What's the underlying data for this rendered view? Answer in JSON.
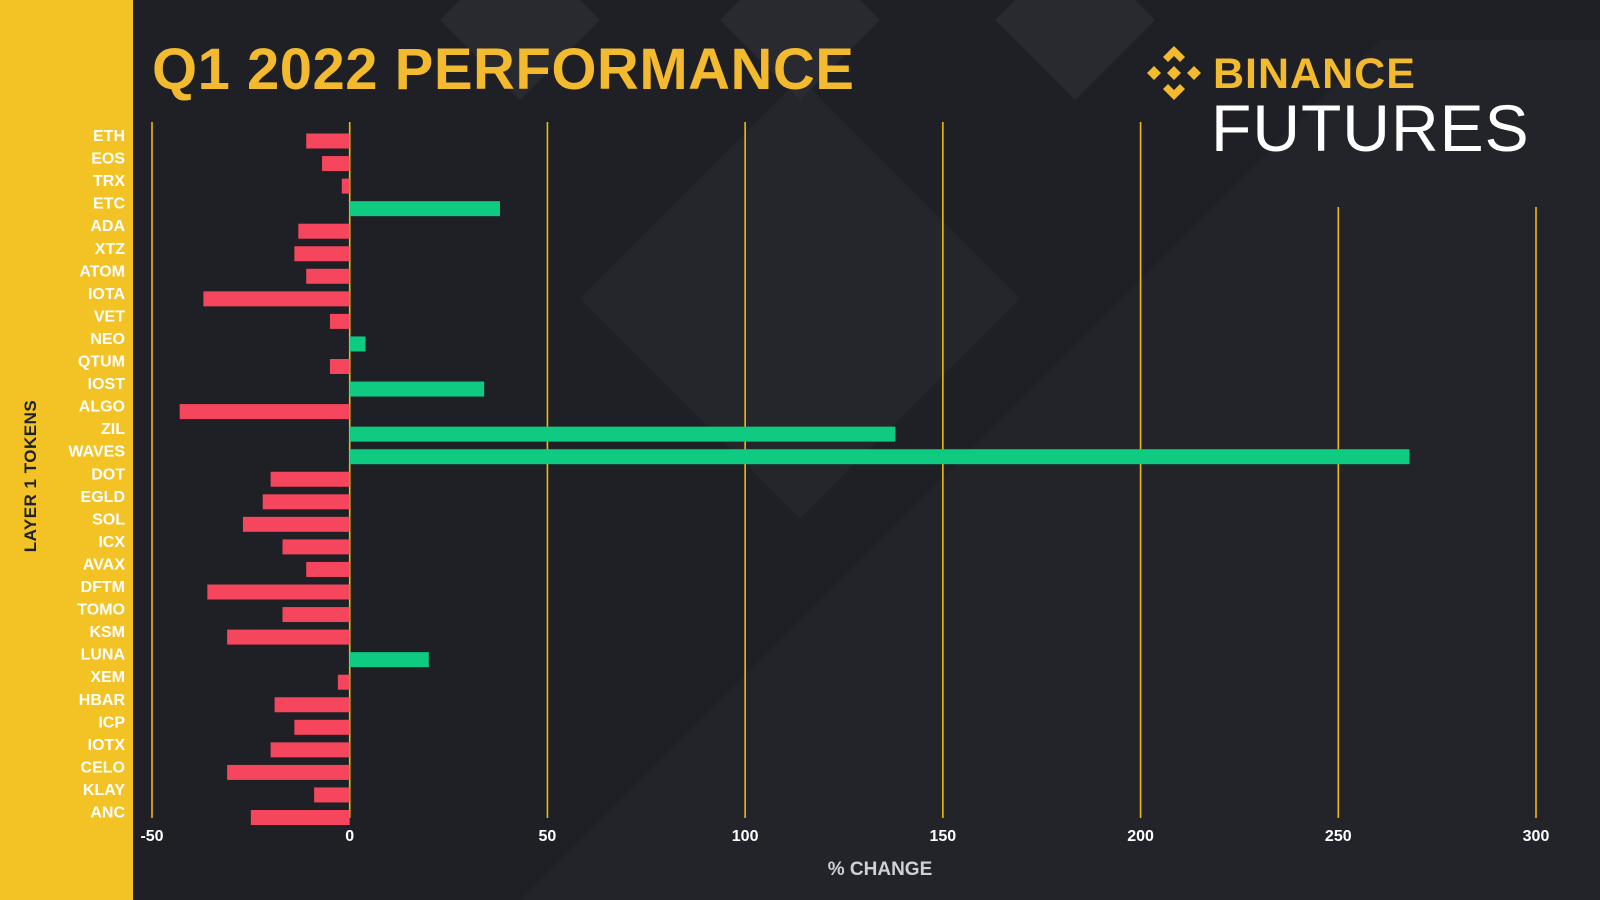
{
  "header": {
    "title": "Q1 2022 PERFORMANCE",
    "brand_top": "BINANCE",
    "brand_bottom": "FUTURES",
    "logo_icon": "binance-diamond-icon"
  },
  "colors": {
    "background": "#1f2025",
    "side_band": "#f3c325",
    "accent": "#f3ba2f",
    "positive": "#0ecb81",
    "negative": "#f6465d",
    "gridline": "#f0b90b"
  },
  "chart_data": {
    "type": "bar",
    "orientation": "horizontal",
    "title": "Q1 2022 PERFORMANCE",
    "xlabel": "% CHANGE",
    "ylabel": "LAYER 1 TOKENS",
    "xlim": [
      -50,
      300
    ],
    "xticks": [
      -50,
      0,
      50,
      100,
      150,
      200,
      250,
      300
    ],
    "grid": true,
    "categories": [
      "ETH",
      "EOS",
      "TRX",
      "ETC",
      "ADA",
      "XTZ",
      "ATOM",
      "IOTA",
      "VET",
      "NEO",
      "QTUM",
      "IOST",
      "ALGO",
      "ZIL",
      "WAVES",
      "DOT",
      "EGLD",
      "SOL",
      "ICX",
      "AVAX",
      "DFTM",
      "TOMO",
      "KSM",
      "LUNA",
      "XEM",
      "HBAR",
      "ICP",
      "IOTX",
      "CELO",
      "KLAY",
      "ANC"
    ],
    "values": [
      -11,
      -7,
      -2,
      38,
      -13,
      -14,
      -11,
      -37,
      -5,
      4,
      -5,
      34,
      -43,
      138,
      268,
      -20,
      -22,
      -27,
      -17,
      -11,
      -36,
      -17,
      -31,
      20,
      -3,
      -19,
      -14,
      -20,
      -31,
      -9,
      -25
    ]
  }
}
